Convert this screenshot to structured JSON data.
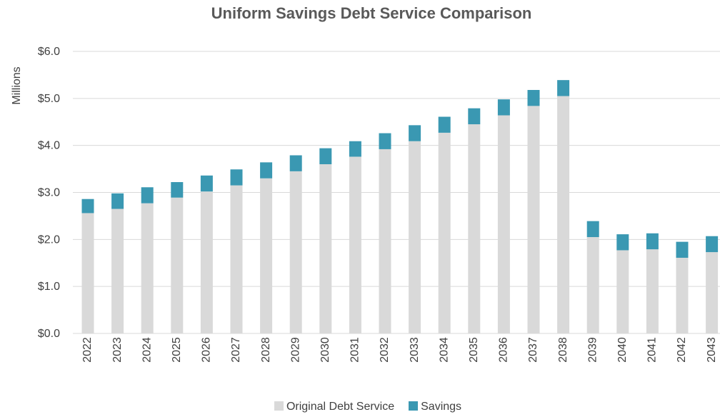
{
  "chart_data": {
    "type": "bar",
    "stacked": true,
    "title": "Uniform Savings Debt Service Comparison",
    "ylabel": "Millions",
    "xlabel": "",
    "ylim": [
      0,
      6
    ],
    "ytick_values": [
      0,
      1,
      2,
      3,
      4,
      5,
      6
    ],
    "ytick_labels": [
      "$0.0",
      "$1.0",
      "$2.0",
      "$3.0",
      "$4.0",
      "$5.0",
      "$6.0"
    ],
    "grid": true,
    "legend_position": "bottom",
    "categories": [
      "2022",
      "2023",
      "2024",
      "2025",
      "2026",
      "2027",
      "2028",
      "2029",
      "2030",
      "2031",
      "2032",
      "2033",
      "2034",
      "2035",
      "2036",
      "2037",
      "2038",
      "2039",
      "2040",
      "2041",
      "2042",
      "2043"
    ],
    "series": [
      {
        "name": "Original Debt Service",
        "color": "#d9d9d9",
        "values": [
          2.56,
          2.65,
          2.77,
          2.89,
          3.02,
          3.15,
          3.3,
          3.45,
          3.6,
          3.76,
          3.92,
          4.09,
          4.27,
          4.45,
          4.64,
          4.84,
          5.05,
          2.05,
          1.77,
          1.79,
          1.61,
          1.73
        ]
      },
      {
        "name": "Savings",
        "color": "#3a98b2",
        "values": [
          0.3,
          0.33,
          0.34,
          0.33,
          0.34,
          0.34,
          0.34,
          0.34,
          0.34,
          0.33,
          0.34,
          0.34,
          0.34,
          0.34,
          0.34,
          0.34,
          0.34,
          0.34,
          0.34,
          0.34,
          0.34,
          0.34
        ]
      }
    ]
  }
}
